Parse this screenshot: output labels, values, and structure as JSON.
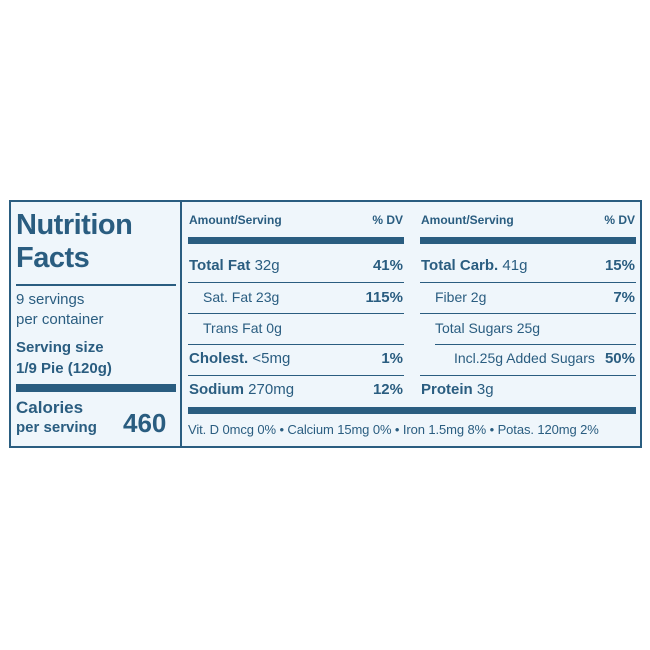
{
  "title_line1": "Nutrition",
  "title_line2": "Facts",
  "servings_per_container_line1": "9 servings",
  "servings_per_container_line2": "per container",
  "serving_size_label": "Serving size",
  "serving_size_value": "1/9 Pie (120g)",
  "calories_label": "Calories",
  "calories_sublabel": "per serving",
  "calories_value": "460",
  "left_column": {
    "amount_header": "Amount/Serving",
    "dv_header": "% DV",
    "rows": [
      {
        "name": "Total Fat",
        "amount": "32g",
        "dv": "41%"
      },
      {
        "name": "Sat. Fat",
        "amount": "23g",
        "dv": "115%"
      },
      {
        "name": "Trans Fat",
        "amount": "0g",
        "dv": ""
      },
      {
        "name": "Cholest.",
        "amount": "<5mg",
        "dv": "1%"
      },
      {
        "name": "Sodium",
        "amount": "270mg",
        "dv": "12%"
      }
    ]
  },
  "right_column": {
    "amount_header": "Amount/Serving",
    "dv_header": "% DV",
    "rows": [
      {
        "name": "Total Carb.",
        "amount": "41g",
        "dv": "15%"
      },
      {
        "name": "Fiber",
        "amount": "2g",
        "dv": "7%"
      },
      {
        "name": "Total Sugars",
        "amount": "25g",
        "dv": ""
      },
      {
        "name": "Incl.25g Added Sugars",
        "amount": "",
        "dv": "50%"
      },
      {
        "name": "Protein",
        "amount": "3g",
        "dv": ""
      }
    ]
  },
  "vitamins_line": "Vit. D 0mcg 0% • Calcium 15mg 0% • Iron 1.5mg 8% • Potas. 120mg 2%",
  "colors": {
    "ink": "#2a5d80",
    "background": "#eff6fb"
  }
}
